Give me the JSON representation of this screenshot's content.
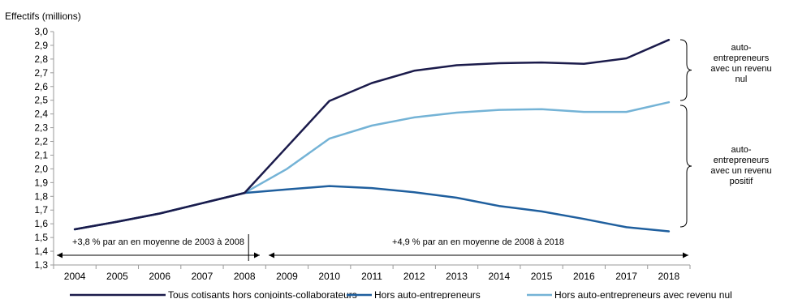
{
  "chart_data": {
    "type": "line",
    "ylabel": "Effectifs (millions)",
    "x": [
      "2004",
      "2005",
      "2006",
      "2007",
      "2008",
      "2009",
      "2010",
      "2011",
      "2012",
      "2013",
      "2014",
      "2015",
      "2016",
      "2017",
      "2018"
    ],
    "y_ticks": [
      "3,0",
      "2,9",
      "2,8",
      "2,7",
      "2,6",
      "2,5",
      "2,4",
      "2,3",
      "2,2",
      "2,1",
      "2,0",
      "1,9",
      "1,8",
      "1,7",
      "1,6",
      "1,5",
      "1,4",
      "1,3"
    ],
    "ylim": [
      1.3,
      3.0
    ],
    "series": [
      {
        "name": "Tous cotisants hors conjoints-collaborateurs",
        "color": "#1b1b4b",
        "values": [
          1.56,
          1.615,
          1.675,
          1.75,
          1.825,
          2.16,
          2.495,
          2.625,
          2.715,
          2.755,
          2.77,
          2.775,
          2.765,
          2.805,
          2.94
        ]
      },
      {
        "name": "Hors auto-entrepreneurs",
        "color": "#1f5f9e",
        "values": [
          1.56,
          1.615,
          1.675,
          1.75,
          1.825,
          1.85,
          1.875,
          1.86,
          1.83,
          1.79,
          1.73,
          1.69,
          1.635,
          1.575,
          1.545
        ]
      },
      {
        "name": "Hors auto-entrepreneurs avec revenu nul",
        "color": "#74b3d6",
        "values": [
          1.56,
          1.615,
          1.675,
          1.75,
          1.825,
          2.0,
          2.22,
          2.315,
          2.375,
          2.41,
          2.43,
          2.435,
          2.415,
          2.415,
          2.485
        ]
      }
    ],
    "annotations": {
      "growth_left": "+3,8 % par an en moyenne de 2003 à 2008",
      "growth_right": "+4,9 % par an en moyenne de 2008 à 2018",
      "brace_top": [
        "auto-",
        "entrepreneurs",
        "avec un revenu",
        "nul"
      ],
      "brace_bottom": [
        "auto-",
        "entrepreneurs",
        "avec un revenu",
        "positif"
      ]
    },
    "legend_position": "bottom"
  }
}
